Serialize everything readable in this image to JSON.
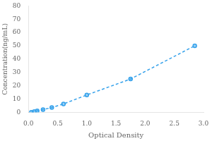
{
  "chart_data": {
    "type": "line",
    "xlabel": "Optical Density",
    "ylabel": "Concentration(ng/mL)",
    "x": [
      0.05,
      0.1,
      0.15,
      0.25,
      0.4,
      0.6,
      1.0,
      1.75,
      2.85
    ],
    "values": [
      0.0,
      0.5,
      1.0,
      2.0,
      3.5,
      6.25,
      13.0,
      25.0,
      50.0
    ],
    "xlim": [
      0,
      3.0
    ],
    "ylim": [
      0,
      80
    ],
    "xticks": [
      {
        "value": 0,
        "label": "0.0"
      },
      {
        "value": 0.5,
        "label": "0.5"
      },
      {
        "value": 1,
        "label": "1.0"
      },
      {
        "value": 1.5,
        "label": "1.5"
      },
      {
        "value": 2,
        "label": "2.0"
      },
      {
        "value": 2.5,
        "label": "2.5"
      },
      {
        "value": 3,
        "label": "3.0"
      }
    ],
    "yticks": [
      0,
      10,
      20,
      30,
      40,
      50,
      60,
      70,
      80
    ],
    "grid": false,
    "marker": "circle",
    "line_style": "dashed"
  }
}
